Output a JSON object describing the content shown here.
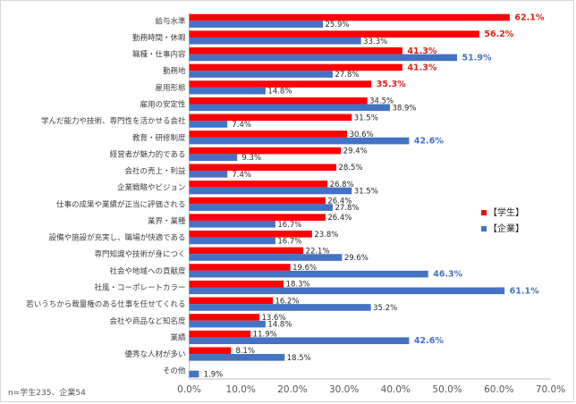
{
  "chart_data": {
    "type": "bar",
    "orientation": "horizontal",
    "categories": [
      "給与水準",
      "勤務時間・休暇",
      "職種・仕事内容",
      "勤務地",
      "雇用形態",
      "雇用の安定性",
      "学んだ能力や技術、専門性を活かせる会社",
      "教育・研修制度",
      "経営者が魅力的である",
      "会社の売上・利益",
      "企業戦略やビジョン",
      "仕事の成果や業績が正当に評価される",
      "業界・業種",
      "設備や施設が充実し、職場が快適である",
      "専門知識や技術が身につく",
      "社会や地域への貢献度",
      "社風・コーポレートカラー",
      "若いうちから裁量権のある仕事を任せてくれる",
      "会社や商品など知名度",
      "業績",
      "優秀な人材が多い",
      "その他"
    ],
    "series": [
      {
        "name": "【学生】",
        "color": "#ff0000",
        "values": [
          62.1,
          56.2,
          41.3,
          41.3,
          35.3,
          34.5,
          31.5,
          30.6,
          29.4,
          28.5,
          26.8,
          26.4,
          26.4,
          23.8,
          22.1,
          19.6,
          18.3,
          16.2,
          13.6,
          11.9,
          8.1,
          null
        ],
        "labels": [
          "62.1%",
          "56.2%",
          "41.3%",
          "41.3%",
          "35.3%",
          "34.5%",
          "31.5%",
          "30.6%",
          "29.4%",
          "28.5%",
          "26.8%",
          "26.4%",
          "26.4%",
          "23.8%",
          "22.1%",
          "19.6%",
          "18.3%",
          "16.2%",
          "13.6%",
          "11.9%",
          "8.1%",
          ""
        ]
      },
      {
        "name": "【企業】",
        "color": "#4472c4",
        "values": [
          25.9,
          33.3,
          51.9,
          27.8,
          14.8,
          38.9,
          7.4,
          42.6,
          9.3,
          7.4,
          31.5,
          27.8,
          16.7,
          16.7,
          29.6,
          46.3,
          61.1,
          35.2,
          14.8,
          42.6,
          18.5,
          1.9
        ],
        "labels": [
          "25.9%",
          "33.3%",
          "51.9%",
          "27.8%",
          "14.8%",
          "38.9%",
          "7.4%",
          "42.6%",
          "9.3%",
          "7.4%",
          "31.5%",
          "27.8%",
          "16.7%",
          "16.7%",
          "29.6%",
          "46.3%",
          "61.1%",
          "35.2%",
          "14.8%",
          "42.6%",
          "18.5%",
          "1.9%"
        ]
      }
    ],
    "highlight_labels": {
      "【学生】": [
        "62.1%",
        "56.2%",
        "41.3%",
        "41.3%",
        "35.3%"
      ],
      "【企業】": [
        "51.9%",
        "42.6%",
        "46.3%",
        "61.1%",
        "42.6%"
      ]
    },
    "xlim": [
      0,
      70
    ],
    "x_ticks": [
      "0.0%",
      "10.0%",
      "20.0%",
      "30.0%",
      "40.0%",
      "50.0%",
      "60.0%",
      "70.0%"
    ],
    "grid": false,
    "legend": "right",
    "note": "n=学生235、企業54"
  }
}
